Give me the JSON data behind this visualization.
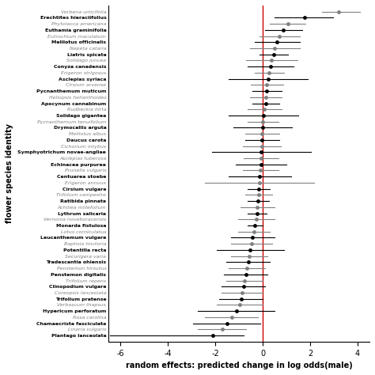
{
  "species": [
    [
      "Verbena urticifolia",
      false
    ],
    [
      "Erechtites hieraciifolius",
      true
    ],
    [
      "Phytolacca americana",
      false
    ],
    [
      "Euthamia graminifolia",
      true
    ],
    [
      "Eutrochium maculatum",
      false
    ],
    [
      "Melilotus officinalis",
      true
    ],
    [
      "Nepeta cataria",
      false
    ],
    [
      "Liatris spicata",
      true
    ],
    [
      "Solidago juncea",
      false
    ],
    [
      "Conyza canadensis",
      true
    ],
    [
      "Erigeron strigosus",
      false
    ],
    [
      "Asclepias syriaca",
      true
    ],
    [
      "Cirsium arvense",
      false
    ],
    [
      "Pycnanthemum muticum",
      true
    ],
    [
      "Heliopsis helianthoides",
      false
    ],
    [
      "Apocynum cannabinum",
      true
    ],
    [
      "Rudbeckia hirta",
      false
    ],
    [
      "Solidago gigantea",
      true
    ],
    [
      "Pycnanthemum tenuifolium",
      false
    ],
    [
      "Drymocallis arguta",
      true
    ],
    [
      "Melilotus albus",
      false
    ],
    [
      "Daucus carota",
      true
    ],
    [
      "Cichorium intybus",
      false
    ],
    [
      "Symphyotrichum novae-angliae",
      true
    ],
    [
      "Asclepias tuberosa",
      false
    ],
    [
      "Echinacea purpurea",
      true
    ],
    [
      "Prunella vulgaris",
      false
    ],
    [
      "Centuarea stoebe",
      true
    ],
    [
      "Erigeron annuus",
      false
    ],
    [
      "Cirsium vulgare",
      true
    ],
    [
      "Trifolium campestre",
      false
    ],
    [
      "Ratibida pinnata",
      true
    ],
    [
      "Achillea millefolium",
      false
    ],
    [
      "Lythrum salicaria",
      true
    ],
    [
      "Vernonia noveboracensis",
      false
    ],
    [
      "Monarda fistulosa",
      true
    ],
    [
      "Lotus corniculatus",
      false
    ],
    [
      "Leucanthemum vulgare",
      true
    ],
    [
      "Baptisia tinctoria",
      false
    ],
    [
      "Potentilla recta",
      true
    ],
    [
      "Securigera varia",
      false
    ],
    [
      "Tradescantia ohiensis",
      true
    ],
    [
      "Penstemon hirsutus",
      false
    ],
    [
      "Penstemon digitalis",
      true
    ],
    [
      "Trifolium repens",
      false
    ],
    [
      "Clinopodium vulgare",
      true
    ],
    [
      "Coreopsis lanceolata",
      false
    ],
    [
      "Trifolium pratense",
      true
    ],
    [
      "Verbascum thapsus",
      false
    ],
    [
      "Hypericum perforatum",
      true
    ],
    [
      "Rosa carolina",
      false
    ],
    [
      "Chamaecrista fasciculata",
      true
    ],
    [
      "Linaria vulgaris",
      false
    ],
    [
      "Plantago lanceolata",
      true
    ]
  ],
  "estimates": [
    3.2,
    1.75,
    1.05,
    0.85,
    0.7,
    0.6,
    0.5,
    0.45,
    0.38,
    0.33,
    0.28,
    0.22,
    0.18,
    0.17,
    0.12,
    0.12,
    0.08,
    0.02,
    0.01,
    -0.01,
    -0.02,
    -0.03,
    -0.05,
    -0.06,
    -0.07,
    -0.08,
    -0.1,
    -0.12,
    -0.15,
    -0.17,
    -0.18,
    -0.2,
    -0.22,
    -0.25,
    -0.28,
    -0.32,
    -0.37,
    -0.42,
    -0.47,
    -0.52,
    -0.57,
    -0.62,
    -0.67,
    -0.72,
    -0.77,
    -0.82,
    -0.87,
    -0.92,
    -0.97,
    -1.12,
    -1.32,
    -1.52,
    -1.72,
    -2.12
  ],
  "ci_lower": [
    2.5,
    0.5,
    0.3,
    0.1,
    -0.15,
    -0.35,
    -0.55,
    -0.15,
    -0.7,
    -0.65,
    -0.35,
    -1.45,
    -0.5,
    -0.45,
    -0.55,
    -0.45,
    -0.65,
    -1.45,
    -0.65,
    -1.25,
    -0.75,
    -0.75,
    -0.85,
    -2.15,
    -0.8,
    -1.15,
    -0.85,
    -1.45,
    -2.45,
    -0.65,
    -0.75,
    -0.65,
    -0.95,
    -0.65,
    -1.05,
    -0.65,
    -1.05,
    -1.35,
    -1.35,
    -1.95,
    -1.35,
    -1.55,
    -1.45,
    -1.65,
    -1.55,
    -1.75,
    -1.75,
    -1.85,
    -1.95,
    -2.75,
    -2.45,
    -2.95,
    -2.75,
    -6.45
  ],
  "ci_upper": [
    4.1,
    2.95,
    1.8,
    1.65,
    1.55,
    1.55,
    1.55,
    1.05,
    1.46,
    1.31,
    0.91,
    1.89,
    0.86,
    0.79,
    0.79,
    0.69,
    0.81,
    1.49,
    0.67,
    1.23,
    0.71,
    0.69,
    0.75,
    2.03,
    0.66,
    0.99,
    0.65,
    1.21,
    2.15,
    0.31,
    0.39,
    0.25,
    0.51,
    0.15,
    0.49,
    0.01,
    0.31,
    0.51,
    0.41,
    0.91,
    0.21,
    0.31,
    0.11,
    0.21,
    0.01,
    0.11,
    0.01,
    0.01,
    0.01,
    0.51,
    -0.19,
    -0.09,
    -0.69,
    -0.79
  ],
  "xlabel": "random effects: predicted change in log odds(male)",
  "ylabel": "flower species identity",
  "xlim": [
    -6.5,
    4.5
  ],
  "xticks": [
    -6,
    -4,
    -2,
    0,
    2,
    4
  ],
  "bold_color": "#000000",
  "gray_color": "#808080",
  "vline_color": "#cc0000"
}
